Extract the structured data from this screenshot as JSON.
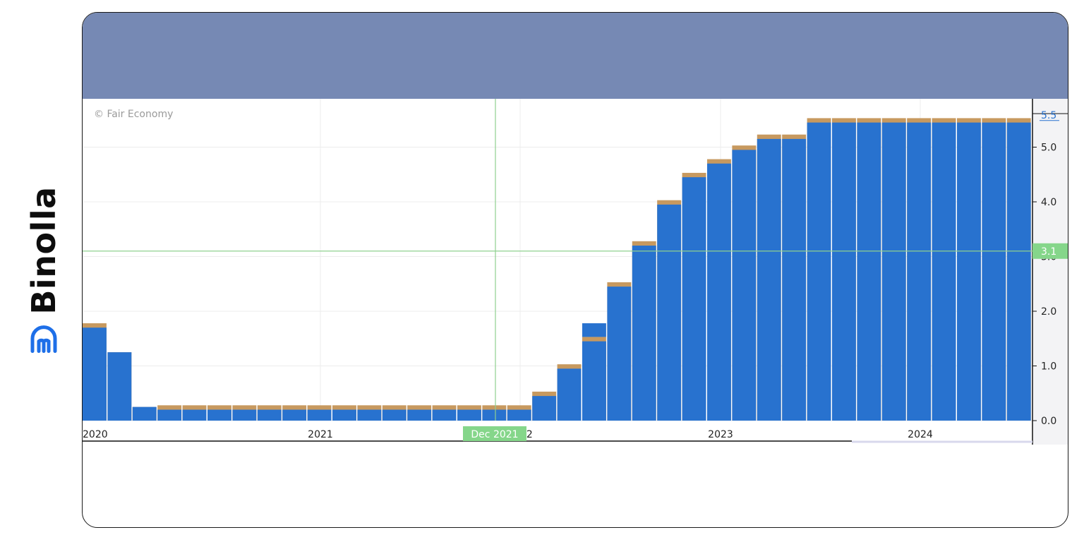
{
  "brand": {
    "name": "Binolla",
    "logo_icon": "binolla-logo-icon",
    "color": "#1e6fe8"
  },
  "chart_data": {
    "type": "bar",
    "watermark": "© Fair Economy",
    "x_ticks": [
      "2020",
      "2021",
      "2022",
      "2023",
      "2024"
    ],
    "y_ticks": [
      "0.0",
      "1.0",
      "2.0",
      "3.0",
      "4.0",
      "5.0"
    ],
    "ylim": [
      0,
      5.8
    ],
    "crosshair": {
      "x_label": "Dec 2021",
      "y_label": "3.1",
      "y_value": 3.1
    },
    "last_value_label": "5.5",
    "series": [
      {
        "color": "#2872cf",
        "values": [
          1.7,
          1.25,
          0.25,
          0.2,
          0.2,
          0.2,
          0.2,
          0.2,
          0.2,
          0.2,
          0.2,
          0.2,
          0.2,
          0.2,
          0.2,
          0.2,
          0.2,
          0.2,
          0.45,
          0.95,
          1.45,
          2.45,
          3.2,
          3.95,
          4.45,
          4.7,
          4.95,
          5.15,
          5.15,
          5.45,
          5.45,
          5.45,
          5.45,
          5.45,
          5.45,
          5.45,
          5.45,
          5.45
        ]
      },
      {
        "color": "#c7995f",
        "values": [
          1.78,
          1.25,
          0.25,
          0.28,
          0.28,
          0.28,
          0.28,
          0.28,
          0.28,
          0.28,
          0.28,
          0.28,
          0.28,
          0.28,
          0.28,
          0.28,
          0.28,
          0.28,
          0.53,
          1.03,
          1.53,
          2.53,
          3.28,
          4.03,
          4.53,
          4.78,
          5.03,
          5.23,
          5.23,
          5.53,
          5.53,
          5.53,
          5.53,
          5.53,
          5.53,
          5.53,
          5.53,
          5.53
        ]
      }
    ],
    "grid": true
  }
}
